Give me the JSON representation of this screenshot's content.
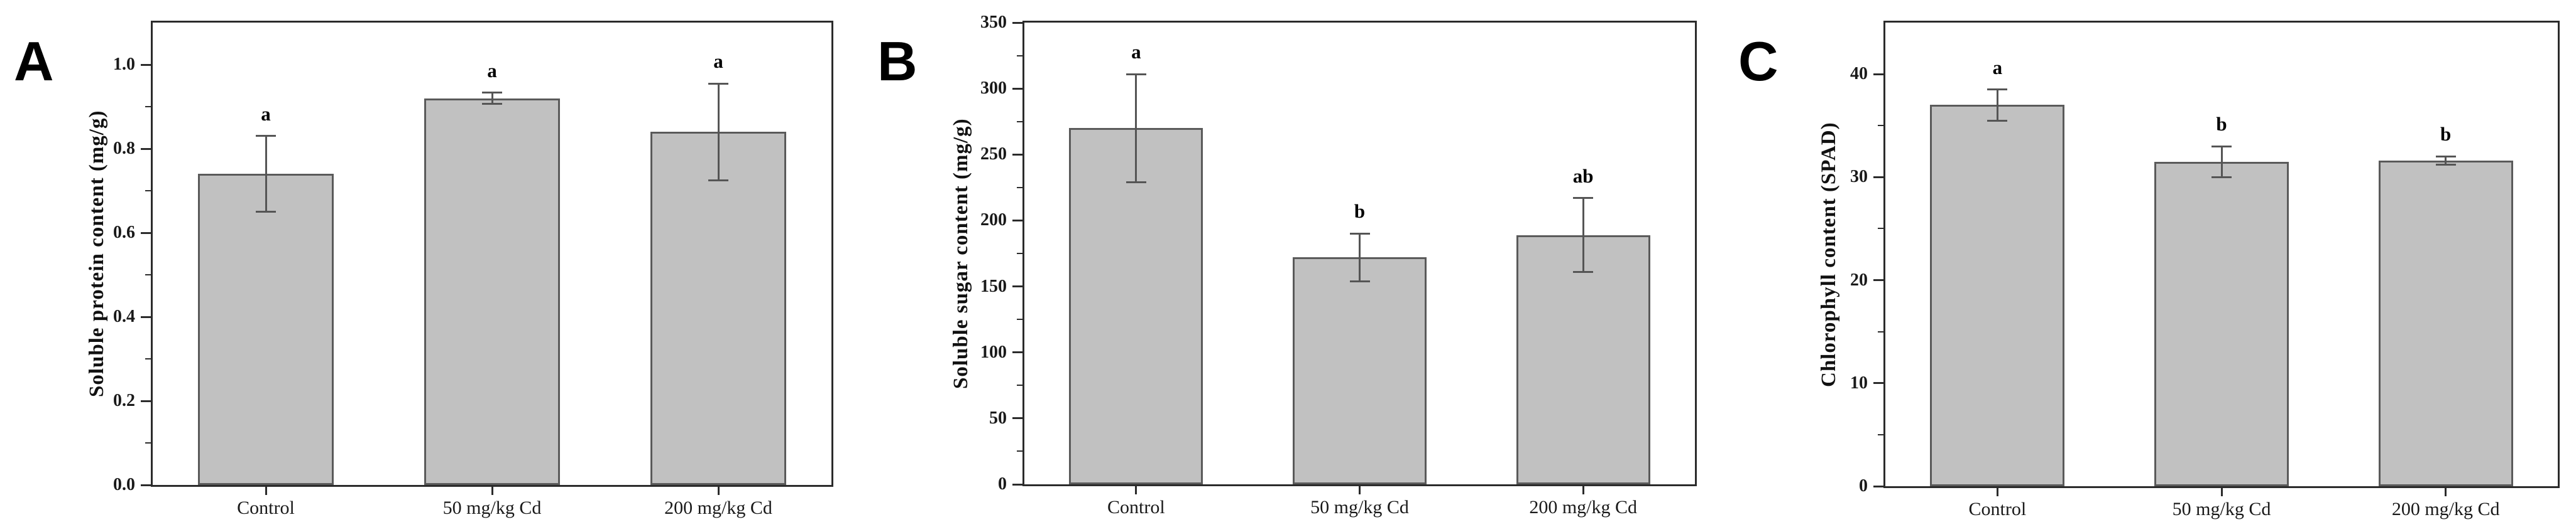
{
  "figure": {
    "description": "Three-panel bar chart of cadmium treatment effects",
    "background": "#ffffff",
    "bar_fill": "#c1c1c1",
    "bar_border": "#5a5a5a",
    "error_color": "#555555",
    "axis_color": "#2b2b2b",
    "text_color": "#111111"
  },
  "chart_data": [
    {
      "panel": "A",
      "type": "bar",
      "title": "",
      "xlabel": "",
      "ylabel": "Soluble protein content (mg/g)",
      "ylim": [
        0,
        1.1
      ],
      "yticks": [
        0,
        0.2,
        0.4,
        0.6,
        0.8,
        1.0
      ],
      "ytick_labels": [
        "0.0",
        "0.2",
        "0.4",
        "0.6",
        "0.8",
        "1.0"
      ],
      "minor_tick_step": 0.1,
      "categories": [
        "Control",
        "50 mg/kg Cd",
        "200 mg/kg Cd"
      ],
      "values": [
        0.74,
        0.92,
        0.84
      ],
      "errors": [
        0.09,
        0.013,
        0.115
      ],
      "sig_letters": [
        "a",
        "a",
        "a"
      ],
      "grid": false,
      "legend": false
    },
    {
      "panel": "B",
      "type": "bar",
      "title": "",
      "xlabel": "",
      "ylabel": "Soluble sugar content (mg/g)",
      "ylim": [
        0,
        350
      ],
      "yticks": [
        0,
        50,
        100,
        150,
        200,
        250,
        300,
        350
      ],
      "ytick_labels": [
        "0",
        "50",
        "100",
        "150",
        "200",
        "250",
        "300",
        "350"
      ],
      "minor_tick_step": 25,
      "categories": [
        "Control",
        "50 mg/kg Cd",
        "200 mg/kg Cd"
      ],
      "values": [
        270,
        172,
        189
      ],
      "errors": [
        41,
        18,
        28
      ],
      "sig_letters": [
        "a",
        "b",
        "ab"
      ],
      "grid": false,
      "legend": false
    },
    {
      "panel": "C",
      "type": "bar",
      "title": "",
      "xlabel": "",
      "ylabel": "Chlorophyll content (SPAD)",
      "ylim": [
        0,
        45
      ],
      "yticks": [
        0,
        10,
        20,
        30,
        40
      ],
      "ytick_labels": [
        "0",
        "10",
        "20",
        "30",
        "40"
      ],
      "minor_tick_step": 5,
      "categories": [
        "Control",
        "50 mg/kg Cd",
        "200 mg/kg Cd"
      ],
      "values": [
        37,
        31.5,
        31.6
      ],
      "errors": [
        1.5,
        1.5,
        0.4
      ],
      "sig_letters": [
        "a",
        "b",
        "b"
      ],
      "grid": false,
      "legend": false
    }
  ]
}
